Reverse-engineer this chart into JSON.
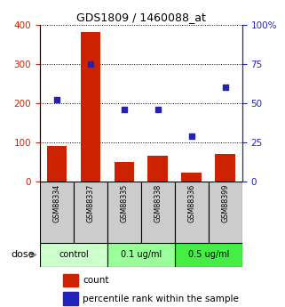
{
  "title": "GDS1809 / 1460088_at",
  "samples": [
    "GSM88334",
    "GSM88337",
    "GSM88335",
    "GSM88338",
    "GSM88336",
    "GSM88399"
  ],
  "bar_values": [
    90,
    380,
    50,
    65,
    22,
    70
  ],
  "scatter_percentiles": [
    52,
    75,
    46,
    46,
    29,
    60
  ],
  "bar_color": "#cc2200",
  "scatter_color": "#2222bb",
  "ylim_left": [
    0,
    400
  ],
  "ylim_right": [
    0,
    100
  ],
  "yticks_left": [
    0,
    100,
    200,
    300,
    400
  ],
  "yticks_right": [
    0,
    25,
    50,
    75,
    100
  ],
  "yticklabels_right": [
    "0",
    "25",
    "50",
    "75",
    "100%"
  ],
  "groups": [
    {
      "label": "control",
      "samples": [
        0,
        1
      ],
      "color": "#ccffcc"
    },
    {
      "label": "0.1 ug/ml",
      "samples": [
        2,
        3
      ],
      "color": "#99ff99"
    },
    {
      "label": "0.5 ug/ml",
      "samples": [
        4,
        5
      ],
      "color": "#44ee44"
    }
  ],
  "dose_label": "dose",
  "legend_bar_label": "count",
  "legend_scatter_label": "percentile rank within the sample",
  "left_axis_color": "#cc2200",
  "right_axis_color": "#2222bb",
  "sample_bg_color": "#cccccc",
  "sample_border_color": "#000000",
  "title_fontsize": 9
}
